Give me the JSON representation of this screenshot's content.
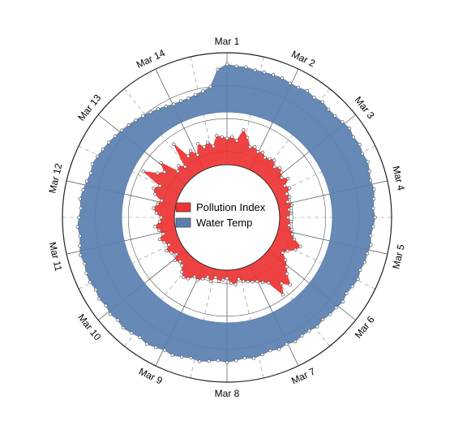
{
  "chart_data": {
    "type": "radial-area",
    "angular_axis": {
      "direction": "clockwise",
      "start": "top",
      "ticks": [
        "Mar 1",
        "Mar 2",
        "Mar 3",
        "Mar 4",
        "Mar 5",
        "Mar 6",
        "Mar 7",
        "Mar 8",
        "Mar 9",
        "Mar 10",
        "Mar 11",
        "Mar 12",
        "Mar 13",
        "Mar 14"
      ]
    },
    "legend": {
      "placement": "center",
      "entries": [
        "Pollution Index",
        "Water Temp"
      ]
    },
    "grid": true,
    "series": [
      {
        "name": "Pollution Index",
        "color": "#ee3333",
        "baseline": 0.32,
        "values": [
          0.48,
          0.49,
          0.47,
          0.54,
          0.5,
          0.45,
          0.46,
          0.44,
          0.45,
          0.43,
          0.44,
          0.45,
          0.42,
          0.44,
          0.43,
          0.41,
          0.44,
          0.4,
          0.42,
          0.39,
          0.4,
          0.38,
          0.4,
          0.38,
          0.39,
          0.37,
          0.39,
          0.38,
          0.4,
          0.41,
          0.43,
          0.48,
          0.46,
          0.42,
          0.4,
          0.44,
          0.47,
          0.5,
          0.56,
          0.52,
          0.58,
          0.47,
          0.45,
          0.43,
          0.42,
          0.41,
          0.4,
          0.38,
          0.41,
          0.4,
          0.37,
          0.38,
          0.39,
          0.37,
          0.4,
          0.38,
          0.4,
          0.42,
          0.41,
          0.44,
          0.45,
          0.43,
          0.4,
          0.39,
          0.41,
          0.38,
          0.4,
          0.42,
          0.39,
          0.41,
          0.43,
          0.4,
          0.42,
          0.44,
          0.41,
          0.4,
          0.43,
          0.45,
          0.43,
          0.41,
          0.46,
          0.48,
          0.45,
          0.58,
          0.5,
          0.47,
          0.52,
          0.41,
          0.43,
          0.4,
          0.55,
          0.44,
          0.46,
          0.42,
          0.48,
          0.45,
          0.47,
          0.44,
          0.5,
          0.49
        ]
      },
      {
        "name": "Water Temp",
        "color": "#5a7fb0",
        "baseline": 0.64,
        "values": [
          0.93,
          0.92,
          0.92,
          0.91,
          0.91,
          0.91,
          0.91,
          0.9,
          0.9,
          0.91,
          0.9,
          0.91,
          0.9,
          0.9,
          0.91,
          0.92,
          0.91,
          0.92,
          0.91,
          0.92,
          0.91,
          0.9,
          0.91,
          0.9,
          0.89,
          0.9,
          0.89,
          0.88,
          0.89,
          0.88,
          0.88,
          0.87,
          0.88,
          0.87,
          0.86,
          0.87,
          0.86,
          0.86,
          0.85,
          0.86,
          0.85,
          0.85,
          0.86,
          0.85,
          0.86,
          0.85,
          0.86,
          0.87,
          0.86,
          0.87,
          0.88,
          0.87,
          0.88,
          0.89,
          0.88,
          0.89,
          0.9,
          0.89,
          0.9,
          0.91,
          0.9,
          0.91,
          0.92,
          0.91,
          0.92,
          0.91,
          0.92,
          0.91,
          0.92,
          0.92,
          0.91,
          0.92,
          0.91,
          0.9,
          0.91,
          0.9,
          0.89,
          0.9,
          0.89,
          0.88,
          0.87,
          0.88,
          0.87,
          0.86,
          0.85,
          0.84,
          0.83,
          0.82,
          0.81,
          0.8,
          0.79,
          0.78,
          0.77,
          0.76,
          0.76,
          0.76,
          0.77,
          0.78,
          0.8,
          0.9
        ]
      }
    ]
  }
}
